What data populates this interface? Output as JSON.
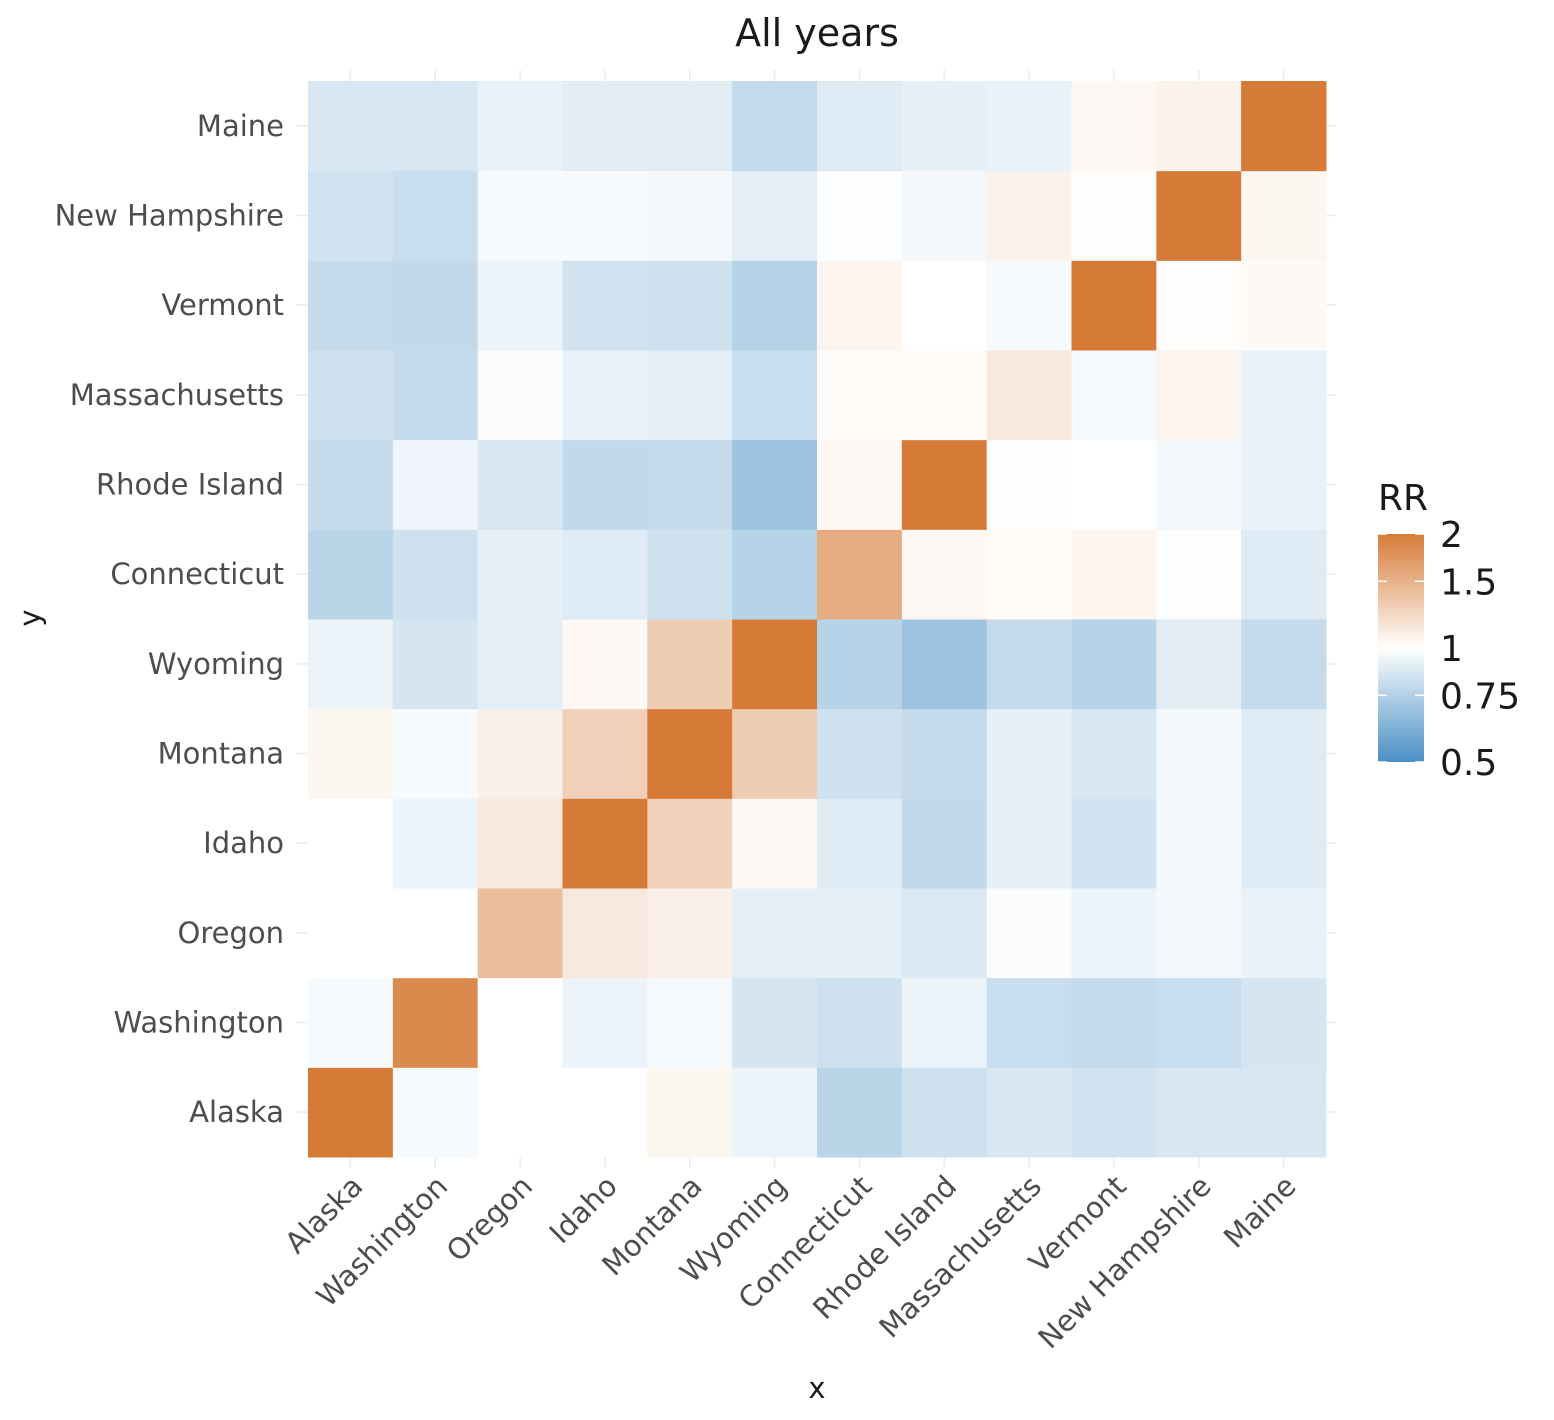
{
  "chart_data": {
    "type": "heatmap",
    "title": "All years",
    "xlabel": "x",
    "ylabel": "y",
    "x_categories": [
      "Alaska",
      "Washington",
      "Oregon",
      "Idaho",
      "Montana",
      "Wyoming",
      "Connecticut",
      "Rhode Island",
      "Massachusetts",
      "Vermont",
      "New Hampshire",
      "Maine"
    ],
    "y_categories": [
      "Alaska",
      "Washington",
      "Oregon",
      "Idaho",
      "Montana",
      "Wyoming",
      "Connecticut",
      "Rhode Island",
      "Massachusetts",
      "Vermont",
      "New Hampshire",
      "Maine"
    ],
    "values": [
      [
        2.0,
        0.97,
        1.0,
        1.0,
        1.05,
        0.93,
        0.77,
        0.83,
        0.86,
        0.84,
        0.86,
        0.86
      ],
      [
        0.97,
        1.85,
        1.0,
        0.93,
        0.97,
        0.85,
        0.83,
        0.93,
        0.81,
        0.8,
        0.81,
        0.85
      ],
      [
        1.0,
        1.0,
        1.4,
        1.12,
        1.08,
        0.9,
        0.91,
        0.87,
        0.98,
        0.93,
        0.96,
        0.92
      ],
      [
        1.0,
        0.93,
        1.12,
        2.0,
        1.28,
        1.04,
        0.88,
        0.79,
        0.91,
        0.84,
        0.96,
        0.88
      ],
      [
        1.05,
        0.97,
        1.08,
        1.28,
        2.0,
        1.3,
        0.83,
        0.8,
        0.91,
        0.86,
        0.95,
        0.88
      ],
      [
        0.93,
        0.85,
        0.9,
        1.04,
        1.3,
        2.0,
        0.76,
        0.69,
        0.8,
        0.76,
        0.89,
        0.8
      ],
      [
        0.77,
        0.83,
        0.91,
        0.88,
        0.83,
        0.76,
        1.55,
        1.04,
        1.02,
        1.06,
        0.99,
        0.88
      ],
      [
        0.8,
        0.94,
        0.86,
        0.79,
        0.8,
        0.69,
        1.04,
        2.0,
        1.01,
        1.0,
        0.96,
        0.92
      ],
      [
        0.83,
        0.8,
        0.98,
        0.92,
        0.9,
        0.81,
        1.02,
        1.02,
        1.12,
        0.97,
        1.06,
        0.92
      ],
      [
        0.8,
        0.79,
        0.93,
        0.84,
        0.83,
        0.76,
        1.06,
        1.0,
        0.97,
        2.0,
        1.01,
        1.03
      ],
      [
        0.84,
        0.81,
        0.97,
        0.97,
        0.96,
        0.9,
        0.99,
        0.96,
        1.07,
        1.01,
        2.0,
        1.05
      ],
      [
        0.86,
        0.86,
        0.92,
        0.89,
        0.89,
        0.8,
        0.88,
        0.91,
        0.92,
        1.04,
        1.07,
        2.0
      ]
    ],
    "legend": {
      "title": "RR",
      "breaks": [
        0.5,
        0.75,
        1,
        1.5,
        2
      ],
      "labels": [
        "0.5",
        "0.75",
        "1",
        "1.5",
        "2"
      ],
      "transform": "log",
      "placement": "right"
    },
    "colors": {
      "low": "#4a8fc3",
      "mid": "#ffffff",
      "high": "#d67b37"
    },
    "grid": true
  }
}
